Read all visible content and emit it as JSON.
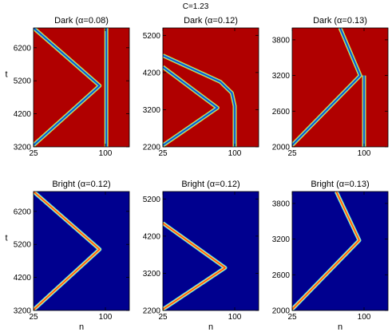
{
  "figure": {
    "suptitle": "C=1.23",
    "xlabel": "n",
    "ylabel": "t"
  },
  "colors": {
    "dark_background": "#b00000",
    "bright_background": "#00008f",
    "dark_trace_outer": "#e8e23a",
    "dark_trace_mid": "#35c5e0",
    "dark_trace_core": "#123fc4",
    "bright_trace_outer": "#4fd8ff",
    "bright_trace_mid": "#ffe840",
    "bright_trace_core": "#ff3a1a",
    "axis": "#000000"
  },
  "chart_data": [
    {
      "type": "heatmap",
      "title": "Dark (α=0.08)",
      "kind": "dark",
      "xlabel": "",
      "ylabel": "t",
      "x_ticks": [
        "25",
        "100"
      ],
      "y_ticks": [
        "3200",
        "4200",
        "5200",
        "6200"
      ],
      "xlim": [
        25,
        125
      ],
      "ylim": [
        3200,
        6800
      ],
      "trajectories": [
        [
          [
            25,
            3250
          ],
          [
            94,
            5050
          ],
          [
            25,
            6800
          ]
        ],
        [
          [
            101,
            3200
          ],
          [
            101,
            6800
          ]
        ]
      ]
    },
    {
      "type": "heatmap",
      "title": "Dark (α=0.12)",
      "kind": "dark",
      "xlabel": "",
      "ylabel": "",
      "x_ticks": [
        "25",
        "100"
      ],
      "y_ticks": [
        "2200",
        "3200",
        "4200",
        "5200"
      ],
      "xlim": [
        25,
        125
      ],
      "ylim": [
        2200,
        5400
      ],
      "trajectories": [
        [
          [
            25,
            2240
          ],
          [
            82,
            3250
          ],
          [
            25,
            4350
          ]
        ],
        [
          [
            25,
            4660
          ],
          [
            85,
            3950
          ],
          [
            97,
            3650
          ],
          [
            100,
            3300
          ],
          [
            100,
            2200
          ]
        ]
      ]
    },
    {
      "type": "heatmap",
      "title": "Dark (α=0.13)",
      "kind": "dark",
      "xlabel": "",
      "ylabel": "",
      "x_ticks": [
        "25",
        "100"
      ],
      "y_ticks": [
        "2000",
        "2600",
        "3200",
        "3800"
      ],
      "xlim": [
        25,
        125
      ],
      "ylim": [
        2000,
        4000
      ],
      "trajectories": [
        [
          [
            25,
            2030
          ],
          [
            96,
            3200
          ],
          [
            75,
            4000
          ]
        ],
        [
          [
            100,
            2000
          ],
          [
            100,
            3200
          ]
        ]
      ]
    },
    {
      "type": "heatmap",
      "title": "Bright (α=0.12)",
      "kind": "bright",
      "xlabel": "n",
      "ylabel": "t",
      "x_ticks": [
        "25",
        "100"
      ],
      "y_ticks": [
        "3200",
        "4200",
        "5200",
        "6200"
      ],
      "xlim": [
        25,
        125
      ],
      "ylim": [
        3200,
        6800
      ],
      "trajectories": [
        [
          [
            25,
            3220
          ],
          [
            94,
            5050
          ],
          [
            25,
            6800
          ]
        ]
      ]
    },
    {
      "type": "heatmap",
      "title": "Bright (α=0.12)",
      "kind": "bright",
      "xlabel": "n",
      "ylabel": "",
      "x_ticks": [
        "25",
        "100"
      ],
      "y_ticks": [
        "2200",
        "3200",
        "4200",
        "5200"
      ],
      "xlim": [
        25,
        125
      ],
      "ylim": [
        2200,
        5400
      ],
      "trajectories": [
        [
          [
            25,
            2230
          ],
          [
            90,
            3350
          ],
          [
            25,
            4550
          ]
        ]
      ]
    },
    {
      "type": "heatmap",
      "title": "Bright (α=0.13)",
      "kind": "bright",
      "xlabel": "n",
      "ylabel": "",
      "x_ticks": [
        "25",
        "100"
      ],
      "y_ticks": [
        "2000",
        "2600",
        "3200",
        "3800"
      ],
      "xlim": [
        25,
        125
      ],
      "ylim": [
        2000,
        4000
      ],
      "trajectories": [
        [
          [
            25,
            2020
          ],
          [
            95,
            3180
          ],
          [
            71,
            4000
          ]
        ]
      ]
    }
  ]
}
